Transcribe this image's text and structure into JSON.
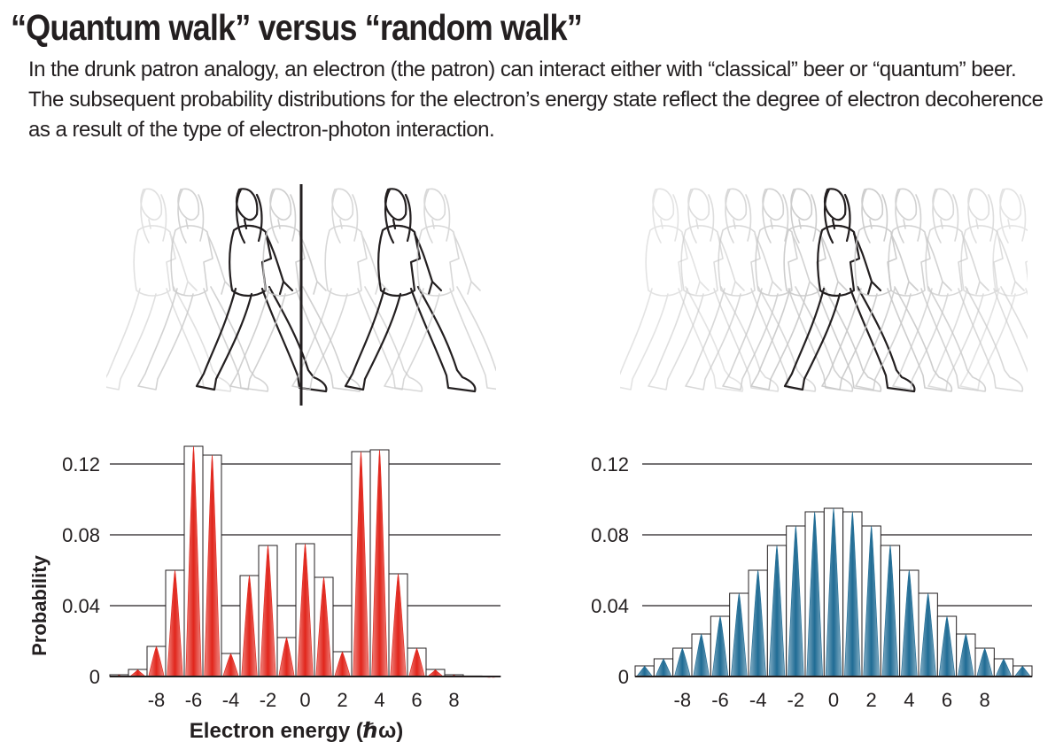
{
  "header": {
    "title": "“Quantum walk” versus “random walk”",
    "subtitle": "In the drunk patron analogy, an electron (the patron) can interact either with “classical” beer or “quantum” beer. The subsequent probability distributions for the electron’s energy state reflect the degree of electron decoherence as a result of the type of electron-photon interaction."
  },
  "illustrations": {
    "left": {
      "icon": "walking-woman-icon",
      "copies": 7,
      "divider": true
    },
    "right": {
      "icon": "walking-woman-icon",
      "copies": 11,
      "divider": false
    }
  },
  "chart_data": [
    {
      "type": "bar",
      "name": "quantum-walk",
      "color": "#e1251b",
      "x": [
        -10,
        -9,
        -8,
        -7,
        -6,
        -5,
        -4,
        -3,
        -2,
        -1,
        0,
        1,
        2,
        3,
        4,
        5,
        6,
        7,
        8,
        9,
        10
      ],
      "values": [
        0.001,
        0.004,
        0.017,
        0.06,
        0.13,
        0.125,
        0.013,
        0.057,
        0.074,
        0.022,
        0.075,
        0.056,
        0.014,
        0.127,
        0.128,
        0.058,
        0.016,
        0.004,
        0.001,
        0.0003,
        0.0001
      ],
      "xticks": [
        -8,
        -6,
        -4,
        -2,
        0,
        2,
        4,
        6,
        8
      ],
      "xtick_labels": [
        "-8",
        "-6",
        "-4",
        "-2",
        "0",
        "2",
        "4",
        "6",
        "8"
      ],
      "yticks": [
        0,
        0.04,
        0.08,
        0.12
      ],
      "ytick_labels": [
        "0",
        "0.04",
        "0.08",
        "0.12"
      ],
      "ylim": [
        0,
        0.132
      ],
      "xlabel": "Electron energy (ℏω)",
      "ylabel": "Probability",
      "grid": true
    },
    {
      "type": "bar",
      "name": "random-walk",
      "color": "#1f6b94",
      "x": [
        -10,
        -9,
        -8,
        -7,
        -6,
        -5,
        -4,
        -3,
        -2,
        -1,
        0,
        1,
        2,
        3,
        4,
        5,
        6,
        7,
        8,
        9,
        10
      ],
      "values": [
        0.006,
        0.01,
        0.016,
        0.024,
        0.034,
        0.047,
        0.06,
        0.074,
        0.085,
        0.093,
        0.095,
        0.093,
        0.085,
        0.074,
        0.06,
        0.047,
        0.034,
        0.024,
        0.016,
        0.01,
        0.006
      ],
      "xticks": [
        -8,
        -6,
        -4,
        -2,
        0,
        2,
        4,
        6,
        8
      ],
      "xtick_labels": [
        "-8",
        "-6",
        "-4",
        "-2",
        "0",
        "2",
        "4",
        "6",
        "8"
      ],
      "yticks": [
        0,
        0.04,
        0.08,
        0.12
      ],
      "ytick_labels": [
        "0",
        "0.04",
        "0.08",
        "0.12"
      ],
      "ylim": [
        0,
        0.132
      ],
      "xlabel": "",
      "ylabel": "",
      "grid": true
    }
  ]
}
